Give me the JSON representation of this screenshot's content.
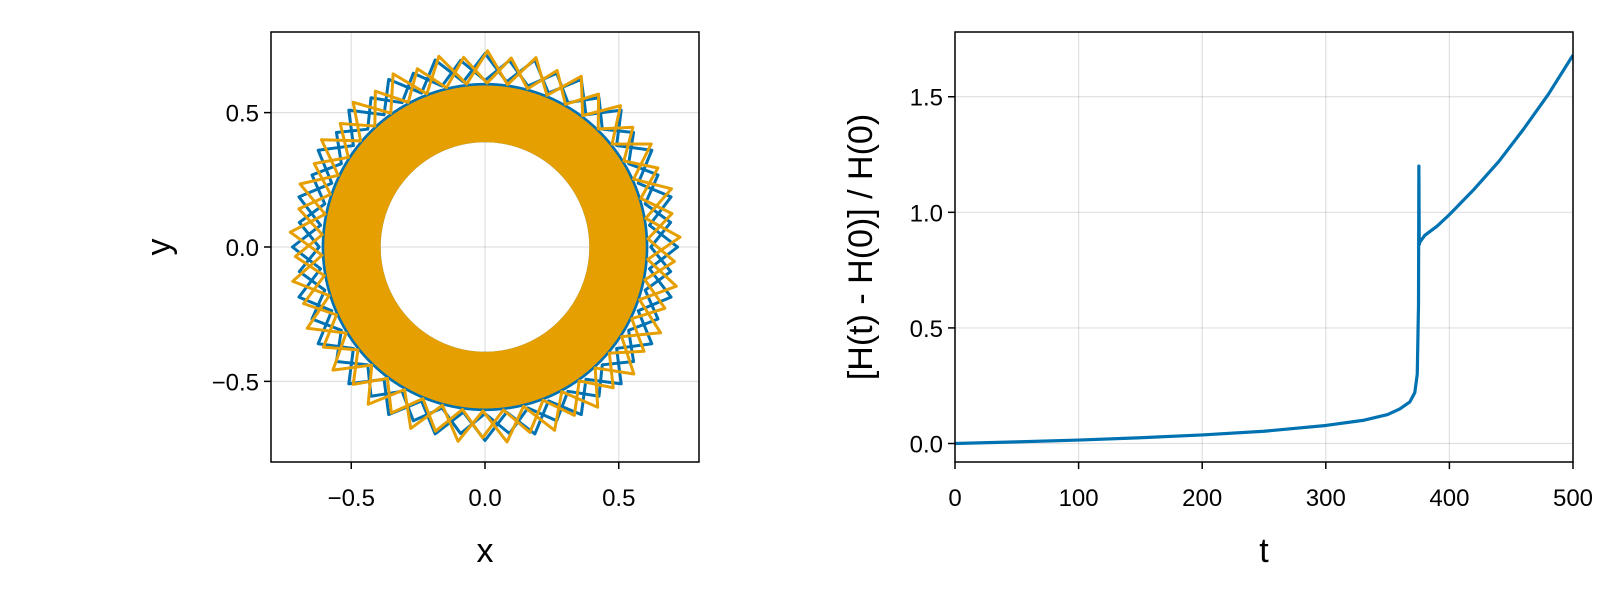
{
  "chart_data": [
    {
      "type": "line",
      "plot": "orbit",
      "xlabel": "x",
      "ylabel": "y",
      "xlim": [
        -0.8,
        0.8
      ],
      "ylim": [
        -0.8,
        0.8
      ],
      "xticks": [
        -0.5,
        0.0,
        0.5
      ],
      "yticks": [
        -0.5,
        0.0,
        0.5
      ],
      "xtick_labels": [
        "−0.5",
        "0.0",
        "0.5"
      ],
      "ytick_labels": [
        "−0.5",
        "0.0",
        "0.5"
      ],
      "grid": true,
      "legend": "none",
      "series": [
        {
          "color": "#0072b2",
          "description_values": {
            "inner_radius": 0.39,
            "outer_radius_min": 0.62,
            "outer_radius_max": 0.72,
            "petal_count": 24
          }
        },
        {
          "color": "#e69f00",
          "description_values": {
            "inner_radius": 0.39,
            "outer_radius_min": 0.61,
            "outer_radius_max": 0.73,
            "petal_count": 25
          }
        }
      ]
    },
    {
      "type": "line",
      "plot": "energy_error",
      "xlabel": "t",
      "ylabel": "[H(t) - H(0)] / H(0)",
      "xlim": [
        0,
        500
      ],
      "ylim": [
        -0.08,
        1.78
      ],
      "xticks": [
        0,
        100,
        200,
        300,
        400,
        500
      ],
      "yticks": [
        0.0,
        0.5,
        1.0,
        1.5
      ],
      "xtick_labels": [
        "0",
        "100",
        "200",
        "300",
        "400",
        "500"
      ],
      "ytick_labels": [
        "0.0",
        "0.5",
        "1.0",
        "1.5"
      ],
      "grid": true,
      "legend": "none",
      "series": [
        {
          "color": "#0072b2",
          "x": [
            0,
            50,
            100,
            150,
            200,
            250,
            300,
            330,
            350,
            360,
            368,
            372,
            374,
            375,
            375.3,
            375.6,
            376,
            380,
            390,
            400,
            420,
            440,
            460,
            480,
            500
          ],
          "y": [
            0.0,
            0.007,
            0.015,
            0.025,
            0.037,
            0.053,
            0.078,
            0.1,
            0.125,
            0.15,
            0.18,
            0.22,
            0.3,
            0.6,
            1.2,
            0.86,
            0.87,
            0.9,
            0.94,
            0.99,
            1.1,
            1.22,
            1.36,
            1.51,
            1.68
          ]
        }
      ]
    }
  ]
}
